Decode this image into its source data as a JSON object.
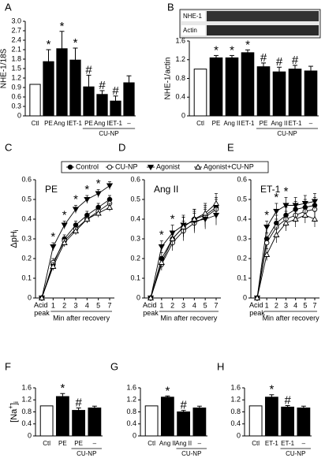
{
  "chart_data": [
    {
      "type": "bar",
      "label": "A",
      "ylabel": "NHE-1/18S",
      "categories": [
        "Ctl",
        "PE",
        "Ang II",
        "ET-1",
        "PE",
        "Ang II",
        "ET-1",
        "–"
      ],
      "values": [
        1.0,
        1.72,
        2.13,
        1.77,
        0.92,
        0.68,
        0.47,
        1.05
      ],
      "errors": [
        0,
        0.38,
        0.55,
        0.38,
        0.37,
        0.12,
        0.16,
        0.22
      ],
      "significance": [
        null,
        "*",
        "*",
        "*",
        "#",
        "#",
        "#",
        null
      ],
      "colors": [
        "#ffffff",
        "#000000",
        "#000000",
        "#000000",
        "#000000",
        "#000000",
        "#000000",
        "#000000"
      ],
      "group_label": "CU-NP",
      "ylim": [
        0,
        3.0
      ],
      "yticks": [
        0,
        0.3,
        0.6,
        0.9,
        1.2,
        1.5,
        1.8,
        2.1,
        2.4,
        2.7,
        {
          "value": 3.0,
          "label": "3.0"
        }
      ]
    },
    {
      "type": "bar",
      "label": "B",
      "ylabel": "NHE-1/actin",
      "blot_labels": [
        "NHE-1",
        "Actin"
      ],
      "categories": [
        "Ctl",
        "PE",
        "Ang II",
        "ET-1",
        "PE",
        "Ang II",
        "ET-1",
        "–"
      ],
      "values": [
        1.0,
        1.24,
        1.24,
        1.35,
        1.05,
        0.94,
        1.0,
        0.96
      ],
      "errors": [
        0,
        0.05,
        0.05,
        0.06,
        0.08,
        0.1,
        0.08,
        0.1
      ],
      "significance": [
        null,
        "*",
        "*",
        "*",
        "#",
        "#",
        "#",
        null
      ],
      "colors": [
        "#ffffff",
        "#000000",
        "#000000",
        "#000000",
        "#000000",
        "#000000",
        "#000000",
        "#000000"
      ],
      "group_label": "CU-NP",
      "ylim": [
        0,
        1.6
      ],
      "yticks": [
        0,
        0.4,
        0.8,
        1.2,
        1.6
      ]
    },
    {
      "type": "line",
      "label": "C",
      "title": "PE",
      "ylabel": [
        {
          "text": "ΔpH"
        },
        {
          "text": "i",
          "shift": "sub"
        }
      ],
      "categories": [
        "Acid peak",
        "1",
        "2",
        "3",
        "4",
        "5",
        "7"
      ],
      "xlabel": "Min after recovery",
      "series": [
        {
          "name": "Control",
          "marker": "circle-filled",
          "values": [
            0.0,
            0.17,
            0.3,
            0.37,
            0.42,
            0.46,
            0.5
          ],
          "errors": [
            0.01,
            0.02,
            0.02,
            0.02,
            0.02,
            0.02,
            0.02
          ]
        },
        {
          "name": "CU-NP",
          "marker": "circle-open",
          "values": [
            0.0,
            0.18,
            0.29,
            0.35,
            0.4,
            0.44,
            0.48
          ],
          "errors": [
            0.01,
            0.02,
            0.02,
            0.02,
            0.02,
            0.02,
            0.02
          ]
        },
        {
          "name": "Agonist",
          "marker": "triangle-down-filled",
          "values": [
            0.0,
            0.26,
            0.37,
            0.45,
            0.5,
            0.53,
            0.57
          ],
          "errors": [
            0.01,
            0.02,
            0.02,
            0.02,
            0.02,
            0.02,
            0.02
          ]
        },
        {
          "name": "Agonist+CU-NP",
          "marker": "triangle-up-open",
          "values": [
            0.0,
            0.16,
            0.28,
            0.34,
            0.4,
            0.43,
            0.46
          ],
          "errors": [
            0.01,
            0.02,
            0.02,
            0.02,
            0.02,
            0.02,
            0.02
          ]
        }
      ],
      "significance": [
        null,
        "*",
        "*",
        "*",
        "*",
        "*",
        null
      ],
      "ylim": [
        0,
        0.6
      ],
      "yticks": [
        0,
        0.1,
        0.2,
        0.3,
        0.4,
        0.5,
        0.6
      ]
    },
    {
      "type": "line",
      "label": "D",
      "title": "Ang II",
      "categories": [
        "Acid peak",
        "1",
        "2",
        "3",
        "4",
        "5",
        "7"
      ],
      "xlabel": "Min after recovery",
      "series": [
        {
          "name": "Control",
          "marker": "circle-filled",
          "values": [
            0.0,
            0.2,
            0.3,
            0.36,
            0.4,
            0.42,
            0.46
          ],
          "errors": [
            0.01,
            0.03,
            0.04,
            0.05,
            0.05,
            0.05,
            0.05
          ]
        },
        {
          "name": "CU-NP",
          "marker": "circle-open",
          "values": [
            0.0,
            0.17,
            0.28,
            0.34,
            0.38,
            0.41,
            0.45
          ],
          "errors": [
            0.01,
            0.03,
            0.04,
            0.05,
            0.05,
            0.05,
            0.05
          ]
        },
        {
          "name": "Agonist",
          "marker": "triangle-down-filled",
          "values": [
            0.0,
            0.26,
            0.33,
            0.37,
            0.39,
            0.4,
            0.42
          ],
          "errors": [
            0.01,
            0.03,
            0.04,
            0.05,
            0.05,
            0.05,
            0.05
          ]
        },
        {
          "name": "Agonist+CU-NP",
          "marker": "triangle-up-open",
          "values": [
            0.0,
            0.18,
            0.3,
            0.36,
            0.4,
            0.43,
            0.48
          ],
          "errors": [
            0.01,
            0.03,
            0.04,
            0.05,
            0.05,
            0.05,
            0.05
          ]
        }
      ],
      "significance": [
        null,
        "*",
        "*",
        null,
        null,
        null,
        null
      ],
      "ylim": [
        0,
        0.6
      ],
      "yticks": [
        0,
        0.1,
        0.2,
        0.3,
        0.4,
        0.5,
        0.6
      ]
    },
    {
      "type": "line",
      "label": "E",
      "title": "ET-1",
      "categories": [
        "Acid peak",
        "1",
        "2",
        "3",
        "4",
        "5",
        "7"
      ],
      "xlabel": "Min after recovery",
      "series": [
        {
          "name": "Control",
          "marker": "circle-filled",
          "values": [
            0.0,
            0.3,
            0.38,
            0.42,
            0.45,
            0.46,
            0.47
          ],
          "errors": [
            0.01,
            0.03,
            0.04,
            0.04,
            0.04,
            0.04,
            0.04
          ]
        },
        {
          "name": "CU-NP",
          "marker": "circle-open",
          "values": [
            0.0,
            0.28,
            0.36,
            0.4,
            0.42,
            0.44,
            0.45
          ],
          "errors": [
            0.01,
            0.03,
            0.04,
            0.04,
            0.04,
            0.04,
            0.04
          ]
        },
        {
          "name": "Agonist",
          "marker": "triangle-down-filled",
          "values": [
            0.0,
            0.36,
            0.44,
            0.47,
            0.47,
            0.48,
            0.49
          ],
          "errors": [
            0.01,
            0.03,
            0.04,
            0.04,
            0.04,
            0.04,
            0.04
          ]
        },
        {
          "name": "Agonist+CU-NP",
          "marker": "triangle-up-open",
          "values": [
            0.0,
            0.22,
            0.32,
            0.38,
            0.4,
            0.42,
            0.4
          ],
          "errors": [
            0.01,
            0.03,
            0.04,
            0.04,
            0.04,
            0.04,
            0.04
          ]
        }
      ],
      "significance": [
        null,
        "*",
        "*",
        "*",
        null,
        null,
        null
      ],
      "ylim": [
        0,
        0.6
      ],
      "yticks": [
        0,
        0.1,
        0.2,
        0.3,
        0.4,
        0.5,
        0.6
      ]
    },
    {
      "type": "bar",
      "label": "F",
      "ylabel": [
        {
          "text": "[Na"
        },
        {
          "text": "+",
          "shift": "super"
        },
        {
          "text": "]"
        },
        {
          "text": "i",
          "shift": "sub"
        }
      ],
      "categories": [
        "Ctl",
        "PE",
        "PE",
        "–"
      ],
      "values": [
        1.0,
        1.31,
        0.85,
        0.93
      ],
      "errors": [
        0,
        0.1,
        0.08,
        0.06
      ],
      "significance": [
        null,
        "*",
        "#",
        null
      ],
      "colors": [
        "#ffffff",
        "#000000",
        "#000000",
        "#000000"
      ],
      "group_label": "CU-NP",
      "ylim": [
        0,
        1.6
      ],
      "yticks": [
        0,
        0.4,
        0.8,
        1.2,
        1.6
      ]
    },
    {
      "type": "bar",
      "label": "G",
      "categories": [
        "Ctl",
        "Ang II",
        "Ang II",
        "–"
      ],
      "values": [
        1.0,
        1.29,
        0.8,
        0.93
      ],
      "errors": [
        0,
        0.04,
        0.05,
        0.06
      ],
      "significance": [
        null,
        "*",
        "#",
        null
      ],
      "colors": [
        "#ffffff",
        "#000000",
        "#000000",
        "#000000"
      ],
      "group_label": "CU-NP",
      "ylim": [
        0,
        1.6
      ],
      "yticks": [
        0,
        0.4,
        0.8,
        1.2,
        1.6
      ]
    },
    {
      "type": "bar",
      "label": "H",
      "categories": [
        "Ctl",
        "ET-1",
        "ET-1",
        "–"
      ],
      "values": [
        1.0,
        1.29,
        0.96,
        0.93
      ],
      "errors": [
        0,
        0.08,
        0.05,
        0.06
      ],
      "significance": [
        null,
        "*",
        "#",
        null
      ],
      "colors": [
        "#ffffff",
        "#000000",
        "#000000",
        "#000000"
      ],
      "group_label": "CU-NP",
      "ylim": [
        0,
        1.6
      ],
      "yticks": [
        0,
        0.4,
        0.8,
        1.2,
        1.6
      ]
    }
  ]
}
